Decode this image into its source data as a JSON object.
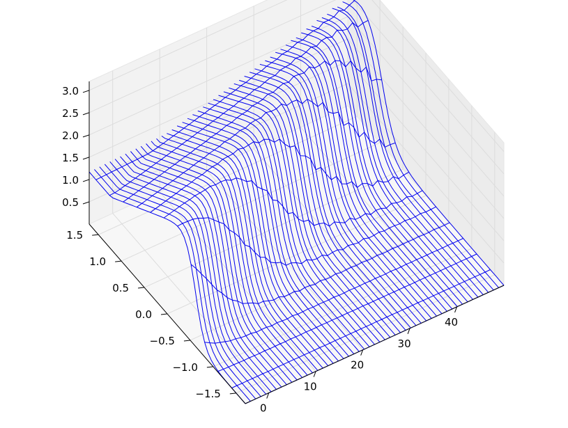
{
  "chart_data": {
    "type": "3d-wireframe",
    "title": "",
    "xlabel": "",
    "ylabel": "",
    "zlabel": "",
    "grid": true,
    "color": "#0000ee",
    "xlim": [
      -5,
      50
    ],
    "ylim": [
      -1.7,
      1.7
    ],
    "zlim": [
      0,
      3.2
    ],
    "x_ticks": [
      "0",
      "10",
      "20",
      "30",
      "40"
    ],
    "x_tick_values": [
      0,
      10,
      20,
      30,
      40
    ],
    "y_ticks": [
      "−1.5",
      "−1.0",
      "−0.5",
      "0.0",
      "0.5",
      "1.0",
      "1.5"
    ],
    "y_tick_values": [
      -1.5,
      -1.0,
      -0.5,
      0.0,
      0.5,
      1.0,
      1.5
    ],
    "z_ticks": [
      "0.5",
      "1.0",
      "1.5",
      "2.0",
      "2.5",
      "3.0"
    ],
    "z_tick_values": [
      0.5,
      1.0,
      1.5,
      2.0,
      2.5,
      3.0
    ],
    "series": [
      {
        "x": [
          -5,
          50
        ],
        "y": [
          -1.7,
          1.7
        ],
        "z_baseline": 0.0,
        "wave_front_y": [
          -0.6,
          1.0
        ],
        "wave_peak_z": [
          2.6,
          3.1
        ],
        "ripple_amplitude": 0.15
      }
    ]
  }
}
